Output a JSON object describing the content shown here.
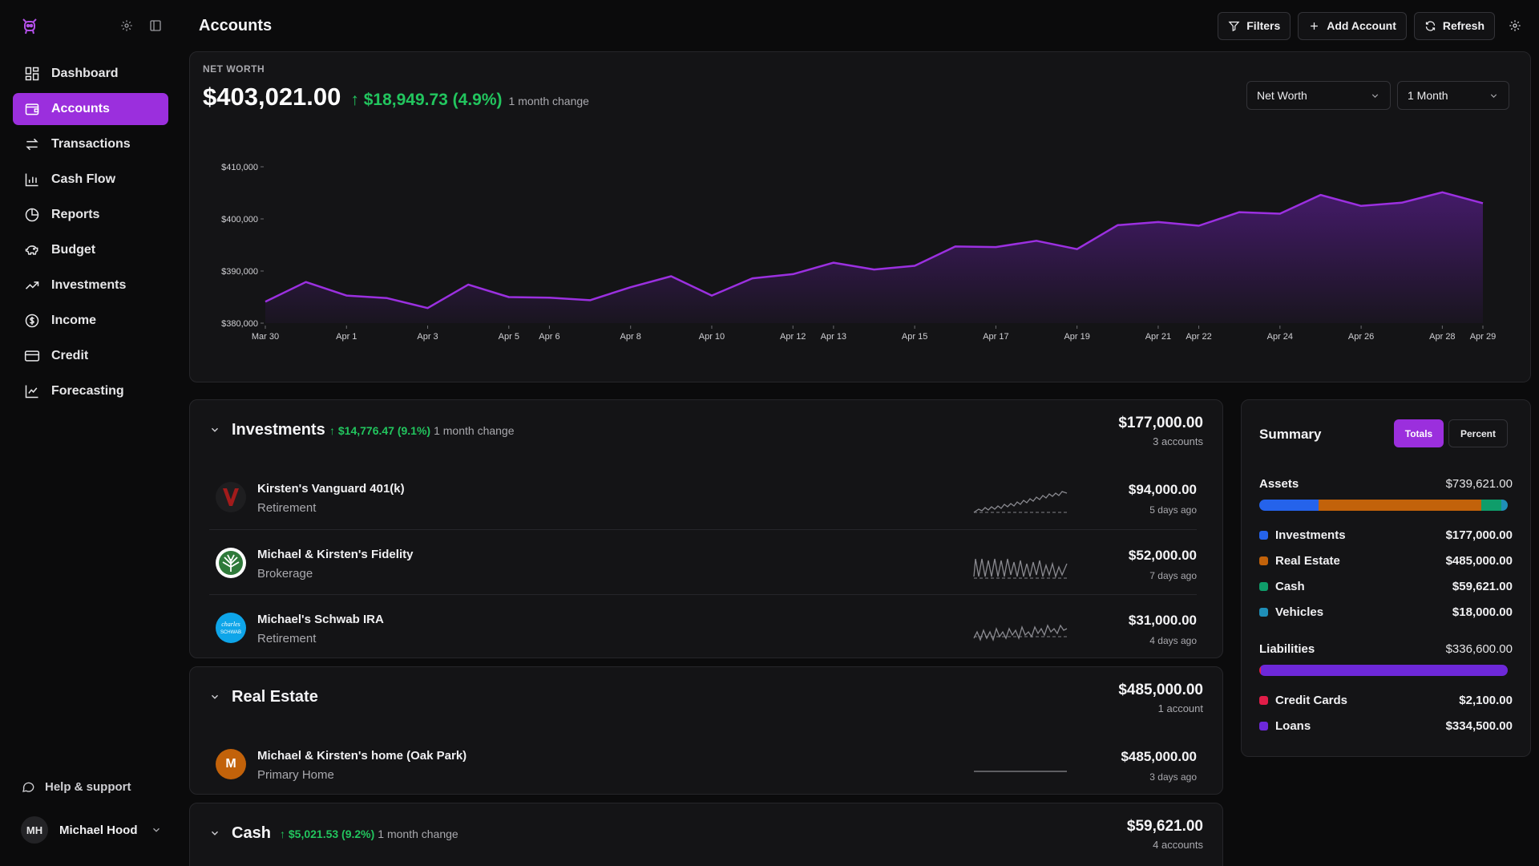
{
  "sidebar": {
    "items": [
      {
        "label": "Dashboard"
      },
      {
        "label": "Accounts",
        "active": true
      },
      {
        "label": "Transactions"
      },
      {
        "label": "Cash Flow"
      },
      {
        "label": "Reports"
      },
      {
        "label": "Budget"
      },
      {
        "label": "Investments"
      },
      {
        "label": "Income"
      },
      {
        "label": "Credit"
      },
      {
        "label": "Forecasting"
      }
    ],
    "help_label": "Help & support",
    "user": {
      "initials": "MH",
      "name": "Michael Hood"
    }
  },
  "header": {
    "title": "Accounts",
    "filters_label": "Filters",
    "add_account_label": "Add Account",
    "refresh_label": "Refresh"
  },
  "net_worth": {
    "label": "NET WORTH",
    "value": "$403,021.00",
    "change": "↑ $18,949.73 (4.9%)",
    "period": "1 month change",
    "metric_select": "Net Worth",
    "range_select": "1 Month"
  },
  "chart_data": {
    "type": "area",
    "x": [
      "Mar 30",
      "Mar 31",
      "Apr 1",
      "Apr 2",
      "Apr 3",
      "Apr 4",
      "Apr 5",
      "Apr 6",
      "Apr 7",
      "Apr 8",
      "Apr 9",
      "Apr 10",
      "Apr 11",
      "Apr 12",
      "Apr 13",
      "Apr 14",
      "Apr 15",
      "Apr 16",
      "Apr 17",
      "Apr 18",
      "Apr 19",
      "Apr 20",
      "Apr 21",
      "Apr 22",
      "Apr 23",
      "Apr 24",
      "Apr 25",
      "Apr 26",
      "Apr 27",
      "Apr 28",
      "Apr 29"
    ],
    "tick_labels": [
      "Mar 30",
      "Apr 1",
      "Apr 3",
      "Apr 5",
      "Apr 6",
      "Apr 8",
      "Apr 10",
      "Apr 12",
      "Apr 13",
      "Apr 15",
      "Apr 17",
      "Apr 19",
      "Apr 21",
      "Apr 22",
      "Apr 24",
      "Apr 26",
      "Apr 28",
      "Apr 29"
    ],
    "values": [
      384100,
      387900,
      385300,
      384800,
      382900,
      387400,
      385000,
      384900,
      384400,
      386900,
      389000,
      385300,
      388600,
      389400,
      391600,
      390300,
      391000,
      394700,
      394600,
      395800,
      394200,
      398800,
      399400,
      398700,
      401300,
      401000,
      404600,
      402500,
      403100,
      405100,
      403021
    ],
    "y_ticks": [
      "$380,000",
      "$390,000",
      "$400,000",
      "$410,000"
    ],
    "ylim": [
      380000,
      410000
    ],
    "line_color": "#9b30e0"
  },
  "groups": {
    "investments": {
      "title": "Investments",
      "change": "↑ $14,776.47 (9.1%)",
      "period": "1 month change",
      "total": "$177,000.00",
      "count": "3 accounts",
      "accounts": [
        {
          "name": "Kirsten's Vanguard 401(k)",
          "type": "Retirement",
          "value": "$94,000.00",
          "updated": "5 days ago",
          "logo": "vanguard-logo"
        },
        {
          "name": "Michael & Kirsten's Fidelity",
          "type": "Brokerage",
          "value": "$52,000.00",
          "updated": "7 days ago",
          "logo": "fidelity-logo"
        },
        {
          "name": "Michael's Schwab IRA",
          "type": "Retirement",
          "value": "$31,000.00",
          "updated": "4 days ago",
          "logo": "schwab-logo",
          "logo_text": "charles SCHWAB"
        }
      ]
    },
    "real_estate": {
      "title": "Real Estate",
      "total": "$485,000.00",
      "count": "1 account",
      "accounts": [
        {
          "name": "Michael & Kirsten's home (Oak Park)",
          "type": "Primary Home",
          "value": "$485,000.00",
          "updated": "3 days ago",
          "logo_letter": "M"
        }
      ]
    },
    "cash": {
      "title": "Cash",
      "change": "↑ $5,021.53 (9.2%)",
      "period": "1 month change",
      "total": "$59,621.00",
      "count": "4 accounts"
    }
  },
  "summary": {
    "title": "Summary",
    "toggle_totals": "Totals",
    "toggle_percent": "Percent",
    "assets": {
      "label": "Assets",
      "total": "$739,621.00",
      "items": [
        {
          "name": "Investments",
          "value": "$177,000.00",
          "amount": 177000,
          "color": "#2563eb"
        },
        {
          "name": "Real Estate",
          "value": "$485,000.00",
          "amount": 485000,
          "color": "#c2620a"
        },
        {
          "name": "Cash",
          "value": "$59,621.00",
          "amount": 59621,
          "color": "#0f9d6a"
        },
        {
          "name": "Vehicles",
          "value": "$18,000.00",
          "amount": 18000,
          "color": "#1f8fb8"
        }
      ]
    },
    "liabilities": {
      "label": "Liabilities",
      "total": "$336,600.00",
      "items": [
        {
          "name": "Credit Cards",
          "value": "$2,100.00",
          "amount": 2100,
          "color": "#e11d48"
        },
        {
          "name": "Loans",
          "value": "$334,500.00",
          "amount": 334500,
          "color": "#6d28d9"
        }
      ]
    }
  }
}
